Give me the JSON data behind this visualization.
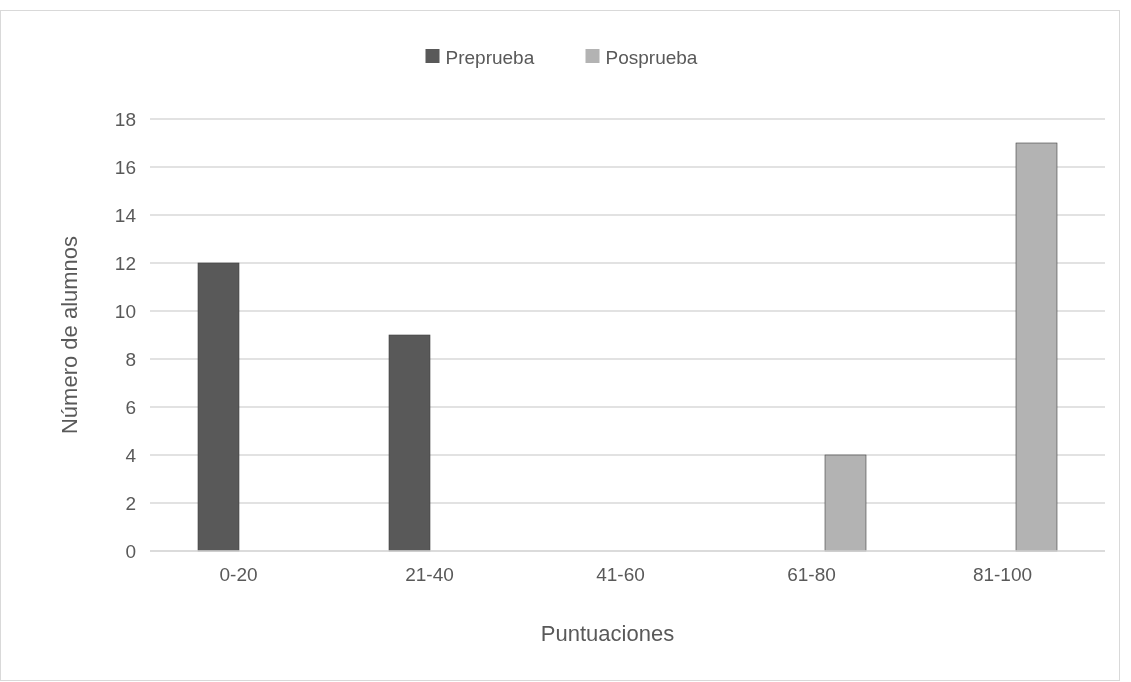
{
  "chart_data": {
    "type": "bar",
    "xlabel": "Puntuaciones",
    "ylabel": "Número de alumnos",
    "categories": [
      "0-20",
      "21-40",
      "41-60",
      "61-80",
      "81-100"
    ],
    "series": [
      {
        "name": "Preprueba",
        "color": "#595959",
        "values": [
          12,
          9,
          0,
          0,
          0
        ]
      },
      {
        "name": "Posprueba",
        "color": "#b3b3b3",
        "values": [
          0,
          0,
          0,
          4,
          17
        ]
      }
    ],
    "ylim": [
      0,
      18
    ],
    "yticks": [
      0,
      2,
      4,
      6,
      8,
      10,
      12,
      14,
      16,
      18
    ],
    "grid": "y",
    "legend": "top"
  }
}
